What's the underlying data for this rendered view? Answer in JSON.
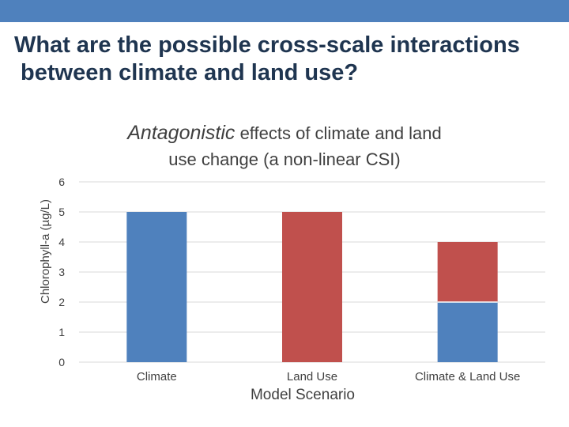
{
  "theme": {
    "band_color": "#4f81bd",
    "title_color": "#1f3550",
    "climate_color": "#4f81bd",
    "land_use_color": "#c0504d"
  },
  "slide": {
    "title_lines": [
      "What are the possible cross-scale interactions",
      " between climate and land use?"
    ]
  },
  "chart_data": {
    "type": "bar",
    "stacked": true,
    "title_emphasis": "Antagonistic",
    "title_rest_line1": "effects of climate and land",
    "title_line2": "use change (a non-linear CSI)",
    "xlabel": "Model Scenario",
    "ylabel": "Chlorophyll-a (µg/L)",
    "categories": [
      "Climate",
      "Land Use",
      "Climate & Land Use"
    ],
    "series": [
      {
        "name": "Climate",
        "values": [
          5,
          0,
          2
        ],
        "color": "#4f81bd"
      },
      {
        "name": "Land Use",
        "values": [
          0,
          5,
          2
        ],
        "color": "#c0504d"
      }
    ],
    "ylim": [
      0,
      6
    ],
    "yticks": [
      0,
      1,
      2,
      3,
      4,
      5,
      6
    ],
    "grid": true,
    "legend": "none"
  }
}
